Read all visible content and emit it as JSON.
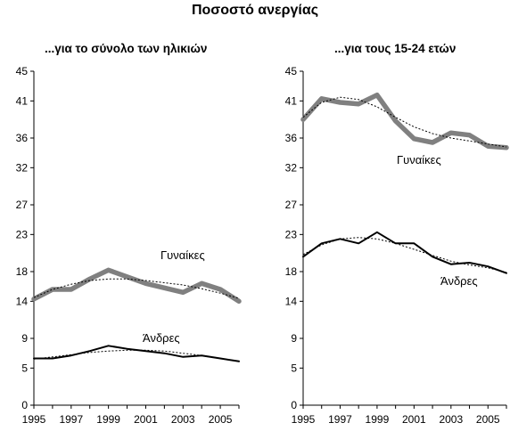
{
  "title": "Ποσοστό ανεργίας",
  "chart_data": [
    {
      "type": "line",
      "title": "...για το σύνολο των ηλικιών",
      "xlabel": "",
      "ylabel": "",
      "ylim": [
        0,
        45
      ],
      "yticks": [
        "0",
        "5",
        "9",
        "14",
        "18",
        "23",
        "27",
        "32",
        "36",
        "41",
        "45"
      ],
      "xlim": [
        1995,
        2006
      ],
      "xticks": [
        "1995",
        "1997",
        "1999",
        "2001",
        "2003",
        "2005"
      ],
      "grid": false,
      "legend": "none",
      "series": [
        {
          "name": "Γυναίκες",
          "color": "#808080",
          "x": [
            1995,
            1996,
            1997,
            1998,
            1999,
            2000,
            2001,
            2002,
            2003,
            2004,
            2005,
            2006
          ],
          "values": [
            14.3,
            15.6,
            15.6,
            17.0,
            18.2,
            17.3,
            16.4,
            15.8,
            15.2,
            16.4,
            15.6,
            14.0
          ],
          "trend": [
            14.5,
            15.6,
            16.3,
            16.8,
            17.0,
            17.0,
            16.8,
            16.5,
            16.2,
            15.7,
            15.1,
            14.4
          ]
        },
        {
          "name": "Άνδρες",
          "color": "#000000",
          "x": [
            1995,
            1996,
            1997,
            1998,
            1999,
            2000,
            2001,
            2002,
            2003,
            2004,
            2005,
            2006
          ],
          "values": [
            6.3,
            6.3,
            6.7,
            7.3,
            8.0,
            7.6,
            7.3,
            7.0,
            6.5,
            6.7,
            6.3,
            5.9
          ],
          "trend": [
            6.2,
            6.5,
            6.8,
            7.1,
            7.3,
            7.4,
            7.4,
            7.3,
            7.0,
            6.7,
            6.3,
            5.9
          ]
        }
      ]
    },
    {
      "type": "line",
      "title": "...για τους 15-24 ετών",
      "xlabel": "",
      "ylabel": "",
      "ylim": [
        0,
        45
      ],
      "yticks": [
        "0",
        "5",
        "9",
        "14",
        "18",
        "23",
        "27",
        "32",
        "36",
        "41",
        "45"
      ],
      "xlim": [
        1995,
        2006
      ],
      "xticks": [
        "1995",
        "1997",
        "1999",
        "2001",
        "2003",
        "2005"
      ],
      "grid": false,
      "legend": "none",
      "series": [
        {
          "name": "Γυναίκες",
          "color": "#808080",
          "x": [
            1995,
            1996,
            1997,
            1998,
            1999,
            2000,
            2001,
            2002,
            2003,
            2004,
            2005,
            2006
          ],
          "values": [
            38.5,
            41.3,
            40.8,
            40.6,
            41.8,
            38.3,
            35.9,
            35.4,
            36.7,
            36.4,
            34.9,
            34.7
          ],
          "trend": [
            38.8,
            40.8,
            41.5,
            41.2,
            40.2,
            38.8,
            37.5,
            36.6,
            36.0,
            35.6,
            35.2,
            34.8
          ]
        },
        {
          "name": "Άνδρες",
          "color": "#000000",
          "x": [
            1995,
            1996,
            1997,
            1998,
            1999,
            2000,
            2001,
            2002,
            2003,
            2004,
            2005,
            2006
          ],
          "values": [
            20.0,
            21.8,
            22.4,
            21.8,
            23.3,
            21.8,
            21.8,
            20.0,
            19.0,
            19.2,
            18.7,
            17.8
          ],
          "trend": [
            20.3,
            21.6,
            22.4,
            22.6,
            22.4,
            21.8,
            21.0,
            20.2,
            19.4,
            18.9,
            18.5,
            17.9
          ]
        }
      ]
    }
  ]
}
